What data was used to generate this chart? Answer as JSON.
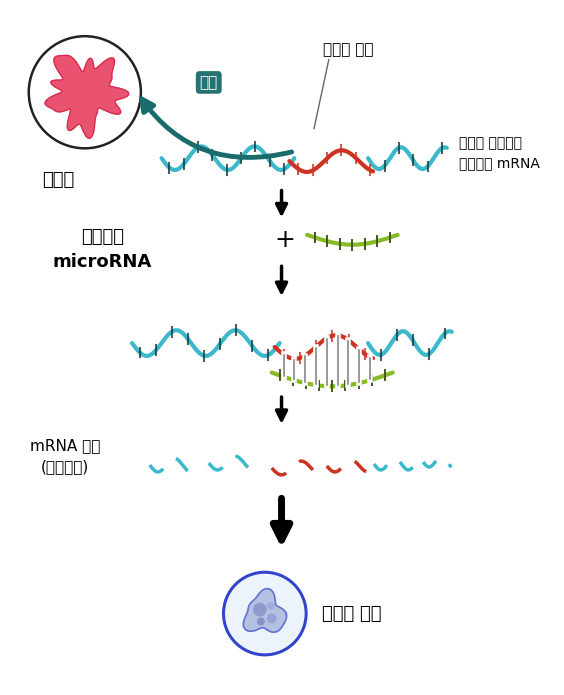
{
  "bg_color": "#ffffff",
  "text_cancer_cell": "암세포",
  "text_mutated": "변이된 부분",
  "text_disease_mrna": "질병을 일으키는\n유전자의 mRNA",
  "text_treatment": "치료제로\nmicroRNA",
  "text_plus": "+",
  "text_mrna_degraded": "mRNA 분해\n(기능상실)",
  "text_healthy_cell": "건강한 세포",
  "text_expression": "발현",
  "arrow_color": "#1a6b6b",
  "strand_blue": "#3ab8cc",
  "strand_red": "#cc3322",
  "strand_green": "#88bb22",
  "tick_color_dark": "#1a3a3a",
  "tick_color_red": "#cc3322",
  "cancer_pink": "#e84060",
  "cancer_dark": "#cc2040",
  "cell_blue_dark": "#3344cc",
  "cell_blue_light": "#8899dd",
  "cell_fill": "#aabbee"
}
